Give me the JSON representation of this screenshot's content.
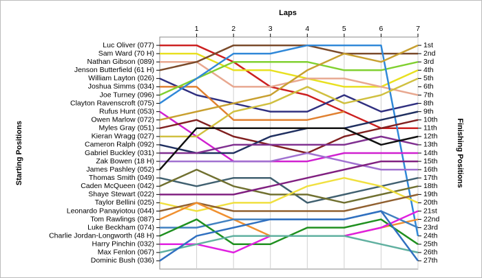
{
  "chart_data": {
    "type": "lap",
    "title": "Laps",
    "ylabel": "Starting Positions",
    "y2label": "Finishing Positions",
    "x": [
      0,
      1,
      2,
      3,
      4,
      5,
      6,
      7
    ],
    "xlim": [
      0,
      7
    ],
    "xticks": [
      1,
      2,
      3,
      4,
      5,
      6,
      7
    ],
    "ylim": [
      0,
      28
    ],
    "invert_y": true,
    "grid": true,
    "y2ticks": [
      {
        "value": 1,
        "label": "1st"
      },
      {
        "value": 2,
        "label": "2nd"
      },
      {
        "value": 3,
        "label": "3rd"
      },
      {
        "value": 4,
        "label": "4th"
      },
      {
        "value": 5,
        "label": "5th"
      },
      {
        "value": 6,
        "label": "6th"
      },
      {
        "value": 7,
        "label": "7th"
      },
      {
        "value": 8,
        "label": "8th"
      },
      {
        "value": 9,
        "label": "9th"
      },
      {
        "value": 10,
        "label": "10th"
      },
      {
        "value": 11,
        "label": "11th"
      },
      {
        "value": 12,
        "label": "12th"
      },
      {
        "value": 13,
        "label": "13th"
      },
      {
        "value": 14,
        "label": "14th"
      },
      {
        "value": 15,
        "label": "15th"
      },
      {
        "value": 16,
        "label": "16th"
      },
      {
        "value": 17,
        "label": "17th"
      },
      {
        "value": 18,
        "label": "18th"
      },
      {
        "value": 19,
        "label": "19th"
      },
      {
        "value": 20,
        "label": "20th"
      },
      {
        "value": 21,
        "label": "21st"
      },
      {
        "value": 22,
        "label": "22nd"
      },
      {
        "value": 23,
        "label": "23rd"
      },
      {
        "value": 24,
        "label": "24th"
      },
      {
        "value": 25,
        "label": "25th"
      },
      {
        "value": 26,
        "label": "26th"
      },
      {
        "value": 27,
        "label": "27th"
      }
    ],
    "series": [
      {
        "name": "Luc Oliver (077)",
        "color": "#cc2020",
        "values": [
          1,
          1,
          3,
          6,
          7,
          9,
          11,
          11
        ]
      },
      {
        "name": "Sam Ward (70 H)",
        "color": "#e8e020",
        "values": [
          2,
          2,
          4,
          4,
          5,
          6,
          6,
          4
        ]
      },
      {
        "name": "Nathan Gibson (089)",
        "color": "#e8a890",
        "values": [
          3,
          3,
          6,
          6,
          5,
          5,
          6,
          7
        ]
      },
      {
        "name": "Jenson Butterfield (61 H)",
        "color": "#7a4a2a",
        "values": [
          4,
          3,
          1,
          1,
          1,
          2,
          2,
          2
        ]
      },
      {
        "name": "William Layton (026)",
        "color": "#303080",
        "values": [
          5,
          7,
          8,
          9,
          9,
          7,
          9,
          8
        ]
      },
      {
        "name": "Joshua Simms (034)",
        "color": "#e08030",
        "values": [
          6,
          6,
          10,
          10,
          10,
          9,
          null,
          null
        ]
      },
      {
        "name": "Joe Turney (096)",
        "color": "#80d030",
        "values": [
          7,
          5,
          3,
          3,
          3,
          4,
          4,
          3
        ]
      },
      {
        "name": "Clayton Ravenscroft (075)",
        "color": "#3088d8",
        "values": [
          8,
          5,
          2,
          2,
          1,
          1,
          1,
          24
        ]
      },
      {
        "name": "Rufus Hunt (053)",
        "color": "#d020d0",
        "values": [
          9,
          12,
          15,
          15,
          15,
          14,
          14,
          14
        ]
      },
      {
        "name": "Owen Marlow (072)",
        "color": "#c8a030",
        "values": [
          10,
          9,
          8,
          7,
          4,
          2,
          3,
          1
        ]
      },
      {
        "name": "Myles Gray (051)",
        "color": "#802020",
        "values": [
          11,
          10,
          12,
          13,
          14,
          12,
          11,
          10
        ]
      },
      {
        "name": "Kieran Wragg (027)",
        "color": "#d0c040",
        "values": [
          12,
          12,
          9,
          8,
          6,
          8,
          7,
          5
        ]
      },
      {
        "name": "Cameron Ralph (092)",
        "color": "#203060",
        "values": [
          13,
          14,
          14,
          12,
          11,
          11,
          10,
          9
        ]
      },
      {
        "name": "Gabriel Buckley (031)",
        "color": "#803090",
        "values": [
          14,
          14,
          13,
          13,
          13,
          13,
          12,
          13
        ]
      },
      {
        "name": "Zak Bowen (18 H)",
        "color": "#a070d0",
        "values": [
          15,
          15,
          15,
          15,
          14,
          15,
          16,
          16
        ]
      },
      {
        "name": "James Pashley (052)",
        "color": "#101010",
        "values": [
          16,
          11,
          11,
          11,
          11,
          11,
          13,
          12
        ]
      },
      {
        "name": "Thomas Smith (049)",
        "color": "#406070",
        "values": [
          17,
          18,
          17,
          17,
          20,
          19,
          18,
          17
        ]
      },
      {
        "name": "Caden McQueen (042)",
        "color": "#707030",
        "values": [
          18,
          16,
          18,
          19,
          19,
          20,
          19,
          18
        ]
      },
      {
        "name": "Shaye Stewart (022)",
        "color": "#802080",
        "values": [
          19,
          19,
          19,
          18,
          17,
          16,
          15,
          15
        ]
      },
      {
        "name": "Taylor Bellini (025)",
        "color": "#f0e040",
        "values": [
          20,
          21,
          20,
          20,
          18,
          17,
          18,
          20
        ]
      },
      {
        "name": "Leonardo Panayiotou (044)",
        "color": "#906030",
        "values": [
          21,
          20,
          21,
          21,
          21,
          21,
          20,
          19
        ]
      },
      {
        "name": "Tom Rawlings (087)",
        "color": "#f09030",
        "values": [
          22,
          20,
          22,
          24,
          24,
          24,
          23,
          22
        ]
      },
      {
        "name": "Luke Beckham (074)",
        "color": "#4080c0",
        "values": [
          23,
          23,
          22,
          22,
          22,
          22,
          21,
          23
        ]
      },
      {
        "name": "Charlie Jordan-Longworth (48 H)",
        "color": "#209020",
        "values": [
          24,
          22,
          25,
          25,
          23,
          23,
          22,
          25
        ]
      },
      {
        "name": "Harry Pinchin (032)",
        "color": "#e020e0",
        "values": [
          25,
          25,
          26,
          24,
          24,
          24,
          23,
          21
        ]
      },
      {
        "name": "Max Fenlon (067)",
        "color": "#60b0a0",
        "values": [
          26,
          25,
          24,
          24,
          24,
          24,
          25,
          26
        ]
      },
      {
        "name": "Dominic Bush (036)",
        "color": "#3070c0",
        "values": [
          27,
          24,
          23,
          22,
          22,
          22,
          21,
          27
        ]
      }
    ]
  }
}
